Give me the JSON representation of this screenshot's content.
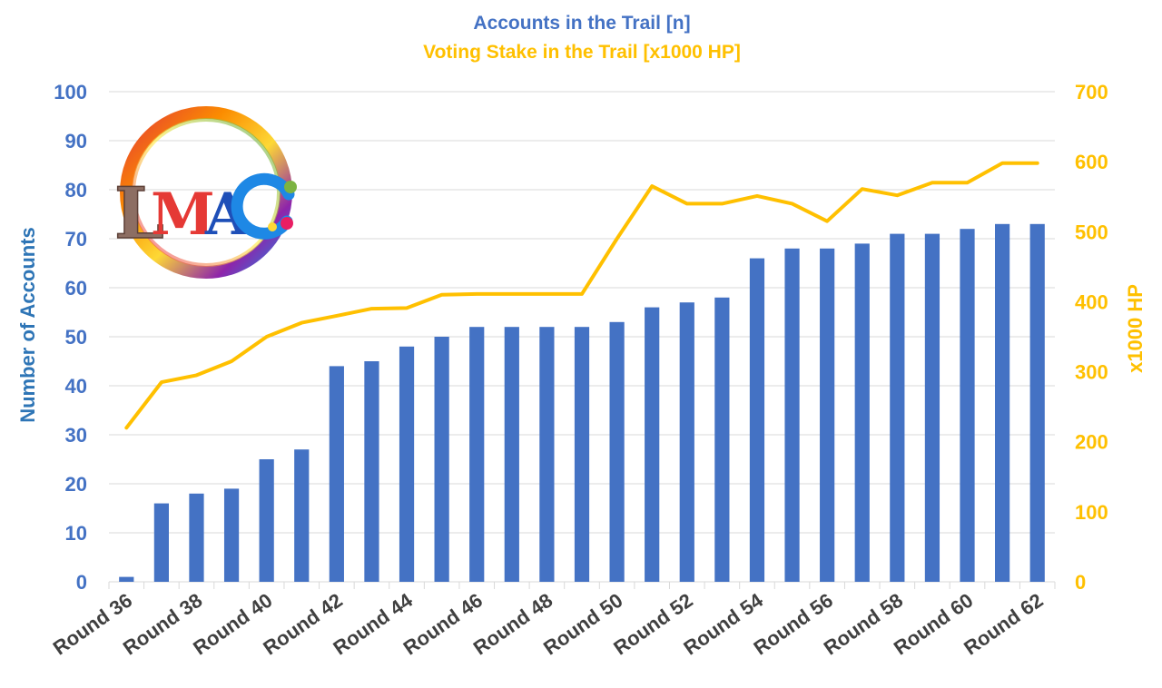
{
  "colors": {
    "bar": "#4472C4",
    "line": "#FFC000",
    "left_axis_text": "#4472C4",
    "left_axis_title": "#2E75B6",
    "right_axis_text": "#FFC000",
    "title_line1": "#4472C4",
    "title_line2": "#FFC000",
    "gridline": "#D9D9D9",
    "x_tick_text": "#404040"
  },
  "logo": {
    "text": "LMAC"
  },
  "chart_data": {
    "type": "bar+line",
    "title": "Accounts in the Trail [n]",
    "subtitle": "Voting Stake in the Trail [x1000 HP]",
    "ylabel": "Number of Accounts",
    "y2label": "x1000 HP",
    "ylim": [
      0,
      100
    ],
    "y2lim": [
      0,
      700
    ],
    "yticks": [
      0,
      10,
      20,
      30,
      40,
      50,
      60,
      70,
      80,
      90,
      100
    ],
    "y2ticks": [
      0,
      100,
      200,
      300,
      400,
      500,
      600,
      700
    ],
    "grid": true,
    "categories": [
      "Round 36",
      "Round 37",
      "Round 38",
      "Round 39",
      "Round 40",
      "Round 41",
      "Round 42",
      "Round 43",
      "Round 44",
      "Round 45",
      "Round 46",
      "Round 47",
      "Round 48",
      "Round 49",
      "Round 50",
      "Round 51",
      "Round 52",
      "Round 53",
      "Round 54",
      "Round 55",
      "Round 56",
      "Round 57",
      "Round 58",
      "Round 59",
      "Round 60",
      "Round 61",
      "Round 62"
    ],
    "visible_tick_labels": [
      "Round 36",
      "Round 38",
      "Round 40",
      "Round 42",
      "Round 44",
      "Round 46",
      "Round 48",
      "Round 50",
      "Round 52",
      "Round 54",
      "Round 56",
      "Round 58",
      "Round 60",
      "Round 62"
    ],
    "series": [
      {
        "type": "bar",
        "axis": "left",
        "values": [
          1,
          16,
          18,
          19,
          25,
          27,
          44,
          45,
          48,
          50,
          52,
          52,
          52,
          52,
          53,
          56,
          57,
          58,
          66,
          68,
          68,
          69,
          71,
          71,
          72,
          73,
          73
        ]
      },
      {
        "type": "line",
        "axis": "right",
        "values": [
          220,
          285,
          295,
          315,
          350,
          370,
          380,
          390,
          391,
          410,
          411,
          411,
          411,
          411,
          490,
          565,
          540,
          540,
          551,
          540,
          515,
          561,
          552,
          570,
          570,
          598,
          598
        ]
      }
    ]
  }
}
